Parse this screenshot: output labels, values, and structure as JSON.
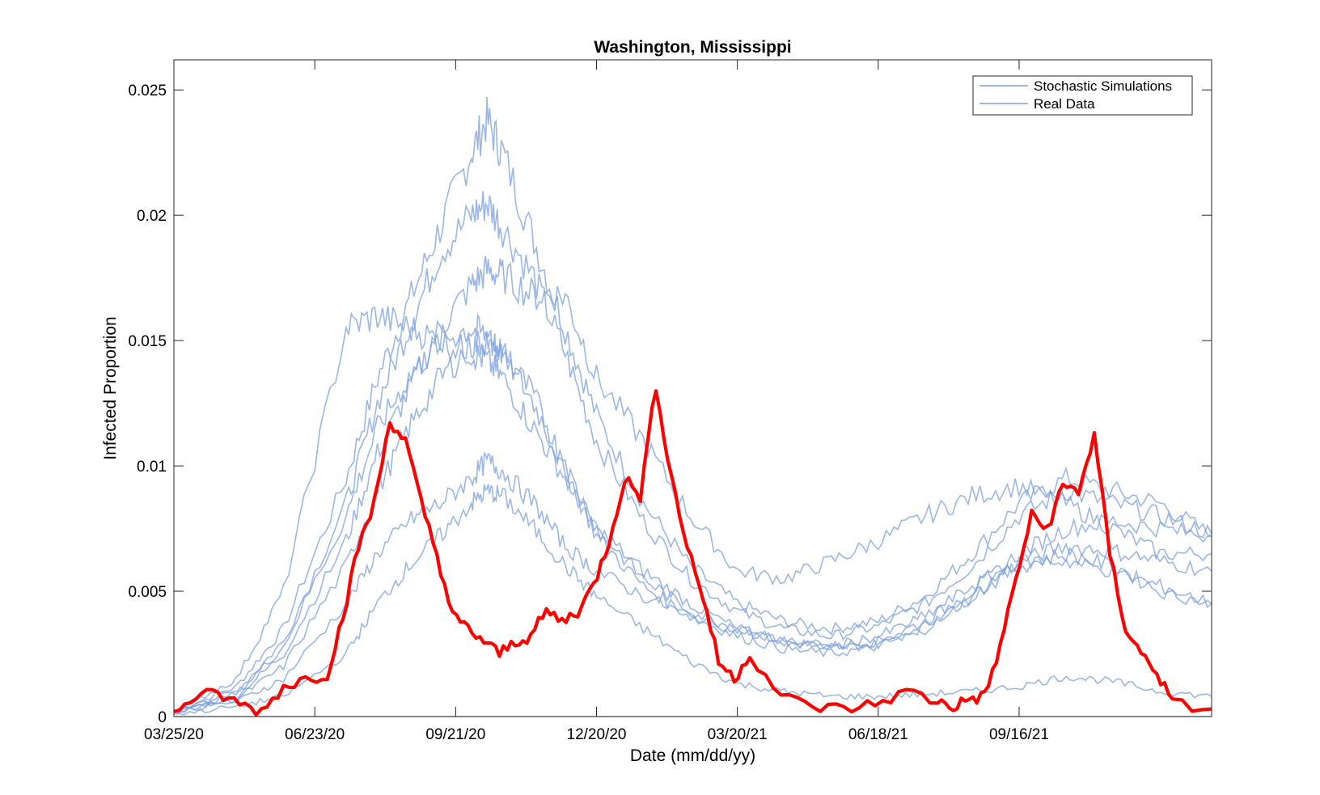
{
  "chart_data": {
    "type": "line",
    "title": "Washington, Mississippi",
    "xlabel": "Date (mm/dd/yy)",
    "ylabel": "Infected Proportion",
    "xlim": [
      "03/25/20",
      "01/17/22"
    ],
    "ylim": [
      0,
      0.0262
    ],
    "x_ticks": [
      "03/25/20",
      "06/23/20",
      "09/21/20",
      "12/20/20",
      "03/20/21",
      "06/18/21",
      "09/16/21"
    ],
    "y_ticks": [
      "0",
      "0.005",
      "0.01",
      "0.015",
      "0.02",
      "0.025"
    ],
    "grid": false,
    "legend": {
      "position": "top-right",
      "entries": [
        "Stochastic Simulations",
        "Real Data"
      ]
    },
    "colors": {
      "simulation": "#7a9fdc",
      "real": "#ff0000",
      "axis": "#262626"
    },
    "series": [
      {
        "name": "Stochastic Simulations",
        "role": "simulation",
        "x": [
          "03/25/20",
          "05/04/20",
          "06/03/20",
          "07/13/20",
          "08/02/20",
          "08/22/20",
          "09/11/20",
          "10/01/20",
          "10/11/20",
          "10/21/20",
          "11/10/20",
          "11/30/20",
          "12/20/20",
          "01/19/21",
          "02/18/21",
          "03/20/21",
          "04/19/21",
          "05/19/21",
          "06/18/21",
          "07/18/21",
          "08/17/21",
          "09/16/21",
          "10/16/21",
          "11/15/21",
          "12/15/21",
          "01/17/22"
        ],
        "y": [
          0.0002,
          0.0012,
          0.0035,
          0.0095,
          0.0135,
          0.0165,
          0.0195,
          0.0225,
          0.0238,
          0.0225,
          0.019,
          0.0155,
          0.012,
          0.0085,
          0.006,
          0.0045,
          0.0038,
          0.0035,
          0.0038,
          0.0048,
          0.0065,
          0.0085,
          0.0095,
          0.009,
          0.0085,
          0.0072
        ]
      },
      {
        "name": "Stochastic Simulations",
        "role": "simulation",
        "x": [
          "03/25/20",
          "05/04/20",
          "06/03/20",
          "07/13/20",
          "08/02/20",
          "08/22/20",
          "09/11/20",
          "10/01/20",
          "10/11/20",
          "10/21/20",
          "11/10/20",
          "11/30/20",
          "12/20/20",
          "01/19/21",
          "02/18/21",
          "03/20/21",
          "04/19/21",
          "05/19/21",
          "06/18/21",
          "07/18/21",
          "08/17/21",
          "09/16/21",
          "10/16/21",
          "11/15/21",
          "12/15/21",
          "01/17/22"
        ],
        "y": [
          0.0002,
          0.001,
          0.003,
          0.0085,
          0.0125,
          0.0155,
          0.0185,
          0.02,
          0.0205,
          0.0195,
          0.0175,
          0.0145,
          0.011,
          0.0078,
          0.0055,
          0.0042,
          0.0035,
          0.0032,
          0.0036,
          0.0045,
          0.006,
          0.008,
          0.009,
          0.0085,
          0.008,
          0.0073
        ]
      },
      {
        "name": "Stochastic Simulations",
        "role": "simulation",
        "x": [
          "03/25/20",
          "05/04/20",
          "06/03/20",
          "07/13/20",
          "08/02/20",
          "08/22/20",
          "09/11/20",
          "10/01/20",
          "10/11/20",
          "10/21/20",
          "11/10/20",
          "11/30/20",
          "12/20/20",
          "01/19/21",
          "02/18/21",
          "03/20/21",
          "04/19/21",
          "05/19/21",
          "06/18/21",
          "07/18/21",
          "08/17/21",
          "09/16/21",
          "10/16/21",
          "11/15/21",
          "12/15/21",
          "01/17/22"
        ],
        "y": [
          0.0002,
          0.0008,
          0.0025,
          0.007,
          0.0105,
          0.013,
          0.0155,
          0.0172,
          0.0178,
          0.0176,
          0.0168,
          0.0168,
          0.0135,
          0.011,
          0.008,
          0.0058,
          0.0055,
          0.0062,
          0.007,
          0.008,
          0.0088,
          0.0092,
          0.0085,
          0.0075,
          0.0065,
          0.0065
        ]
      },
      {
        "name": "Stochastic Simulations",
        "role": "simulation",
        "x": [
          "03/25/20",
          "05/04/20",
          "06/03/20",
          "07/13/20",
          "08/02/20",
          "08/22/20",
          "09/11/20",
          "10/01/20",
          "10/11/20",
          "10/21/20",
          "11/10/20",
          "11/30/20",
          "12/20/20",
          "01/19/21",
          "02/18/21",
          "03/20/21",
          "04/19/21",
          "05/19/21",
          "06/18/21",
          "07/18/21",
          "08/17/21",
          "09/16/21",
          "10/16/21",
          "11/15/21",
          "12/15/21",
          "01/17/22"
        ],
        "y": [
          0.0002,
          0.0015,
          0.005,
          0.0155,
          0.016,
          0.0155,
          0.015,
          0.0145,
          0.0142,
          0.0135,
          0.0115,
          0.0095,
          0.0075,
          0.0058,
          0.0045,
          0.0035,
          0.003,
          0.0028,
          0.003,
          0.0038,
          0.005,
          0.0065,
          0.0075,
          0.0078,
          0.0075,
          0.0072
        ]
      },
      {
        "name": "Stochastic Simulations",
        "role": "simulation",
        "x": [
          "03/25/20",
          "05/04/20",
          "06/03/20",
          "07/13/20",
          "08/02/20",
          "08/22/20",
          "09/11/20",
          "10/01/20",
          "10/11/20",
          "10/21/20",
          "11/10/20",
          "11/30/20",
          "12/20/20",
          "01/19/21",
          "02/18/21",
          "03/20/21",
          "04/19/21",
          "05/19/21",
          "06/18/21",
          "07/18/21",
          "08/17/21",
          "09/16/21",
          "10/16/21",
          "11/15/21",
          "12/15/21",
          "01/17/22"
        ],
        "y": [
          0.0002,
          0.0009,
          0.0028,
          0.008,
          0.0115,
          0.0135,
          0.015,
          0.0155,
          0.0152,
          0.0145,
          0.0125,
          0.0098,
          0.0072,
          0.0052,
          0.004,
          0.0032,
          0.0027,
          0.0025,
          0.0028,
          0.0035,
          0.0048,
          0.0062,
          0.0068,
          0.0066,
          0.0062,
          0.0058
        ]
      },
      {
        "name": "Stochastic Simulations",
        "role": "simulation",
        "x": [
          "03/25/20",
          "05/04/20",
          "06/03/20",
          "07/13/20",
          "08/02/20",
          "08/22/20",
          "09/11/20",
          "10/01/20",
          "10/11/20",
          "10/21/20",
          "11/10/20",
          "11/30/20",
          "12/20/20",
          "01/19/21",
          "02/18/21",
          "03/20/21",
          "04/19/21",
          "05/19/21",
          "06/18/21",
          "07/18/21",
          "08/17/21",
          "09/16/21",
          "10/16/21",
          "11/15/21",
          "12/15/21",
          "01/17/22"
        ],
        "y": [
          0.0002,
          0.0007,
          0.002,
          0.006,
          0.009,
          0.0115,
          0.0135,
          0.0148,
          0.015,
          0.0145,
          0.0128,
          0.01,
          0.0075,
          0.0055,
          0.0042,
          0.0035,
          0.003,
          0.0027,
          0.0029,
          0.0036,
          0.0048,
          0.006,
          0.0065,
          0.006,
          0.005,
          0.0045
        ]
      },
      {
        "name": "Stochastic Simulations",
        "role": "simulation",
        "x": [
          "03/25/20",
          "05/04/20",
          "06/03/20",
          "07/13/20",
          "08/02/20",
          "08/22/20",
          "09/11/20",
          "10/01/20",
          "10/11/20",
          "10/21/20",
          "11/10/20",
          "11/30/20",
          "12/20/20",
          "01/19/21",
          "02/18/21",
          "03/20/21",
          "04/19/21",
          "05/19/21",
          "06/18/21",
          "07/18/21",
          "08/17/21",
          "09/16/21",
          "10/16/21",
          "11/15/21",
          "12/15/21",
          "01/17/22"
        ],
        "y": [
          0.0002,
          0.0006,
          0.0015,
          0.0045,
          0.0065,
          0.0078,
          0.0085,
          0.0095,
          0.0102,
          0.0098,
          0.0085,
          0.0068,
          0.0058,
          0.0048,
          0.004,
          0.0035,
          0.003,
          0.0028,
          0.0032,
          0.004,
          0.0052,
          0.0062,
          0.0062,
          0.0058,
          0.0052,
          0.0045
        ]
      },
      {
        "name": "Stochastic Simulations",
        "role": "simulation",
        "x": [
          "03/25/20",
          "05/04/20",
          "06/03/20",
          "07/13/20",
          "08/02/20",
          "08/22/20",
          "09/11/20",
          "10/01/20",
          "10/11/20",
          "10/21/20",
          "11/10/20",
          "11/30/20",
          "12/20/20",
          "01/19/21",
          "02/18/21",
          "03/20/21",
          "04/19/21",
          "05/19/21",
          "06/18/21",
          "07/18/21",
          "08/17/21",
          "09/16/21",
          "10/16/21",
          "11/15/21",
          "12/15/21",
          "01/17/22"
        ],
        "y": [
          0.0001,
          0.0004,
          0.0008,
          0.0025,
          0.0045,
          0.006,
          0.0072,
          0.0085,
          0.009,
          0.0088,
          0.0075,
          0.006,
          0.0048,
          0.0035,
          0.0022,
          0.0013,
          0.001,
          0.0008,
          0.0008,
          0.0009,
          0.001,
          0.0012,
          0.0016,
          0.0014,
          0.001,
          0.0008
        ]
      },
      {
        "name": "Real Data",
        "role": "real",
        "x": [
          "03/25/20",
          "04/08/20",
          "04/22/20",
          "05/06/20",
          "05/20/20",
          "06/03/20",
          "06/17/20",
          "07/01/20",
          "07/11/20",
          "07/21/20",
          "07/31/20",
          "08/10/20",
          "08/20/20",
          "08/30/20",
          "09/09/20",
          "09/19/20",
          "09/29/20",
          "10/09/20",
          "10/19/20",
          "10/29/20",
          "11/08/20",
          "11/18/20",
          "11/28/20",
          "12/08/20",
          "12/18/20",
          "12/28/20",
          "01/07/21",
          "01/17/21",
          "01/27/21",
          "02/06/21",
          "02/16/21",
          "02/26/21",
          "03/08/21",
          "03/18/21",
          "03/28/21",
          "04/17/21",
          "05/07/21",
          "05/27/21",
          "06/16/21",
          "07/06/21",
          "07/26/21",
          "08/05/21",
          "08/15/21",
          "08/25/21",
          "09/04/21",
          "09/14/21",
          "09/24/21",
          "10/04/21",
          "10/14/21",
          "10/24/21",
          "11/03/21",
          "11/13/21",
          "11/23/21",
          "12/03/21",
          "12/13/21",
          "12/23/21",
          "01/17/22"
        ],
        "y": [
          0.0002,
          0.0008,
          0.0009,
          0.0005,
          0.0002,
          0.0012,
          0.0015,
          0.0017,
          0.004,
          0.0068,
          0.0085,
          0.0118,
          0.011,
          0.0085,
          0.0065,
          0.004,
          0.0035,
          0.003,
          0.0025,
          0.003,
          0.0032,
          0.0042,
          0.0038,
          0.0042,
          0.0052,
          0.007,
          0.0095,
          0.0088,
          0.0132,
          0.0095,
          0.0068,
          0.0048,
          0.0022,
          0.0015,
          0.0025,
          0.0008,
          0.0004,
          0.0003,
          0.0005,
          0.001,
          0.0006,
          0.0004,
          0.0007,
          0.0008,
          0.0028,
          0.0055,
          0.008,
          0.0075,
          0.0092,
          0.009,
          0.0112,
          0.0065,
          0.0035,
          0.0025,
          0.0018,
          0.0005,
          0.0003
        ]
      }
    ]
  }
}
